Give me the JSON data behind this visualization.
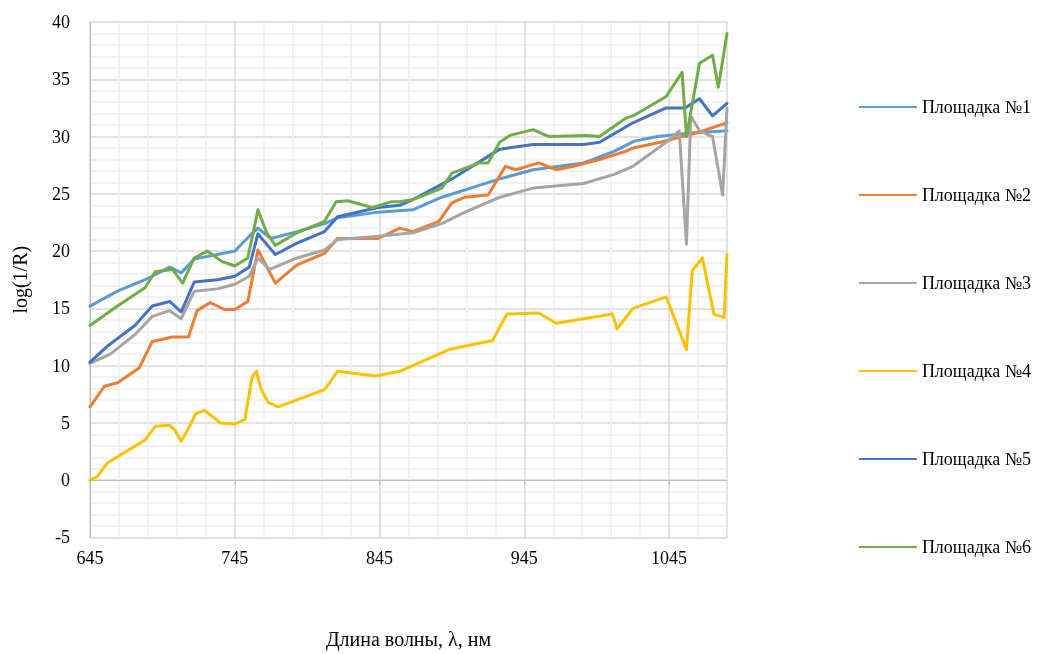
{
  "chart_data": {
    "type": "line",
    "xlabel": "Длина волны, λ, нм",
    "ylabel": "log(1/R)",
    "xlim": [
      645,
      1085
    ],
    "xticks": [
      645,
      745,
      845,
      945,
      1045
    ],
    "ylim": [
      -5,
      40
    ],
    "yticks": [
      -5,
      0,
      5,
      10,
      15,
      20,
      25,
      30,
      35,
      40
    ],
    "grid": true,
    "legend": "right",
    "marker": "none",
    "line_style": "solid",
    "series": [
      {
        "name": "Площадка №1",
        "color": "#5b9bd5",
        "x": [
          645,
          664,
          683,
          700,
          708,
          717,
          745,
          755,
          761,
          770,
          788,
          807,
          816,
          844,
          868,
          888,
          928,
          951,
          986,
          1007,
          1021,
          1037,
          1060,
          1085
        ],
        "values": [
          15.2,
          16.5,
          17.5,
          18.6,
          18.1,
          19.3,
          20.0,
          21.3,
          22.0,
          21.1,
          21.7,
          22.4,
          22.9,
          23.4,
          23.6,
          24.7,
          26.3,
          27.1,
          27.7,
          28.7,
          29.6,
          30.0,
          30.3,
          30.5
        ]
      },
      {
        "name": "Площадка №2",
        "color": "#ed7d31",
        "x": [
          645,
          655,
          664,
          679,
          688,
          702,
          713,
          719,
          728,
          738,
          745,
          754,
          761,
          773,
          788,
          807,
          816,
          844,
          859,
          868,
          886,
          895,
          904,
          920,
          932,
          939,
          955,
          967,
          979,
          997,
          1015,
          1020,
          1039,
          1066,
          1085
        ],
        "values": [
          6.4,
          8.2,
          8.5,
          9.8,
          12.1,
          12.5,
          12.5,
          14.8,
          15.5,
          14.9,
          14.9,
          15.6,
          20.1,
          17.2,
          18.8,
          19.8,
          21.1,
          21.1,
          22.0,
          21.7,
          22.6,
          24.2,
          24.7,
          24.9,
          27.4,
          27.1,
          27.7,
          27.1,
          27.4,
          28.0,
          28.7,
          29.0,
          29.5,
          30.4,
          31.2
        ]
      },
      {
        "name": "Площадка №3",
        "color": "#a5a5a5",
        "x": [
          645,
          659,
          676,
          688,
          700,
          708,
          717,
          733,
          745,
          755,
          761,
          769,
          788,
          807,
          816,
          844,
          868,
          888,
          904,
          928,
          951,
          986,
          1007,
          1020,
          1043,
          1052,
          1057,
          1060,
          1066,
          1075,
          1082,
          1085
        ],
        "values": [
          10.2,
          11.0,
          12.7,
          14.3,
          14.8,
          14.1,
          16.5,
          16.7,
          17.1,
          17.8,
          19.4,
          18.4,
          19.4,
          20.1,
          21.0,
          21.3,
          21.6,
          22.4,
          23.4,
          24.7,
          25.5,
          25.9,
          26.7,
          27.4,
          29.5,
          30.5,
          20.6,
          31.8,
          30.5,
          30.0,
          24.9,
          32.5
        ]
      },
      {
        "name": "Площадка №4",
        "color": "#ffc000",
        "x": [
          645,
          650,
          657,
          670,
          683,
          690,
          700,
          704,
          708,
          713,
          718,
          724,
          735,
          745,
          752,
          757,
          760,
          763,
          768,
          775,
          807,
          816,
          842,
          859,
          866,
          893,
          923,
          933,
          955,
          967,
          1006,
          1009,
          1020,
          1043,
          1057,
          1061,
          1068,
          1076,
          1083,
          1085
        ],
        "values": [
          0.0,
          0.3,
          1.5,
          2.5,
          3.5,
          4.7,
          4.8,
          4.3,
          3.4,
          4.5,
          5.8,
          6.1,
          5.0,
          4.9,
          5.3,
          9.0,
          9.5,
          8.0,
          6.8,
          6.4,
          7.9,
          9.5,
          9.1,
          9.5,
          9.9,
          11.4,
          12.2,
          14.5,
          14.6,
          13.7,
          14.5,
          13.2,
          15.0,
          16.0,
          11.4,
          18.3,
          19.4,
          14.5,
          14.2,
          19.7
        ]
      },
      {
        "name": "Площадка №5",
        "color": "#4472c4",
        "x": [
          645,
          657,
          676,
          688,
          700,
          708,
          717,
          733,
          745,
          755,
          761,
          773,
          788,
          807,
          816,
          844,
          859,
          868,
          895,
          928,
          951,
          986,
          997,
          1020,
          1043,
          1056,
          1066,
          1075,
          1085
        ],
        "values": [
          10.3,
          11.7,
          13.5,
          15.2,
          15.6,
          14.7,
          17.3,
          17.5,
          17.8,
          18.6,
          21.5,
          19.7,
          20.7,
          21.7,
          23.0,
          23.8,
          24.0,
          24.5,
          26.3,
          28.9,
          29.3,
          29.3,
          29.5,
          31.2,
          32.5,
          32.5,
          33.3,
          31.8,
          32.9
        ]
      },
      {
        "name": "Площадка №6",
        "color": "#70ad47",
        "x": [
          645,
          664,
          683,
          690,
          702,
          709,
          717,
          726,
          736,
          745,
          754,
          761,
          767,
          773,
          788,
          807,
          815,
          823,
          840,
          853,
          859,
          868,
          888,
          895,
          914,
          920,
          928,
          935,
          951,
          962,
          988,
          997,
          1015,
          1020,
          1043,
          1054,
          1057,
          1066,
          1075,
          1079,
          1085
        ],
        "values": [
          13.5,
          15.2,
          16.8,
          18.2,
          18.4,
          17.2,
          19.4,
          20.0,
          19.1,
          18.7,
          19.4,
          23.6,
          21.6,
          20.5,
          21.6,
          22.6,
          24.3,
          24.4,
          23.8,
          24.3,
          24.3,
          24.5,
          25.5,
          26.8,
          27.7,
          27.7,
          29.5,
          30.1,
          30.6,
          30.0,
          30.1,
          30.0,
          31.6,
          31.8,
          33.5,
          35.6,
          30.0,
          36.4,
          37.1,
          34.3,
          39.0
        ]
      }
    ]
  }
}
